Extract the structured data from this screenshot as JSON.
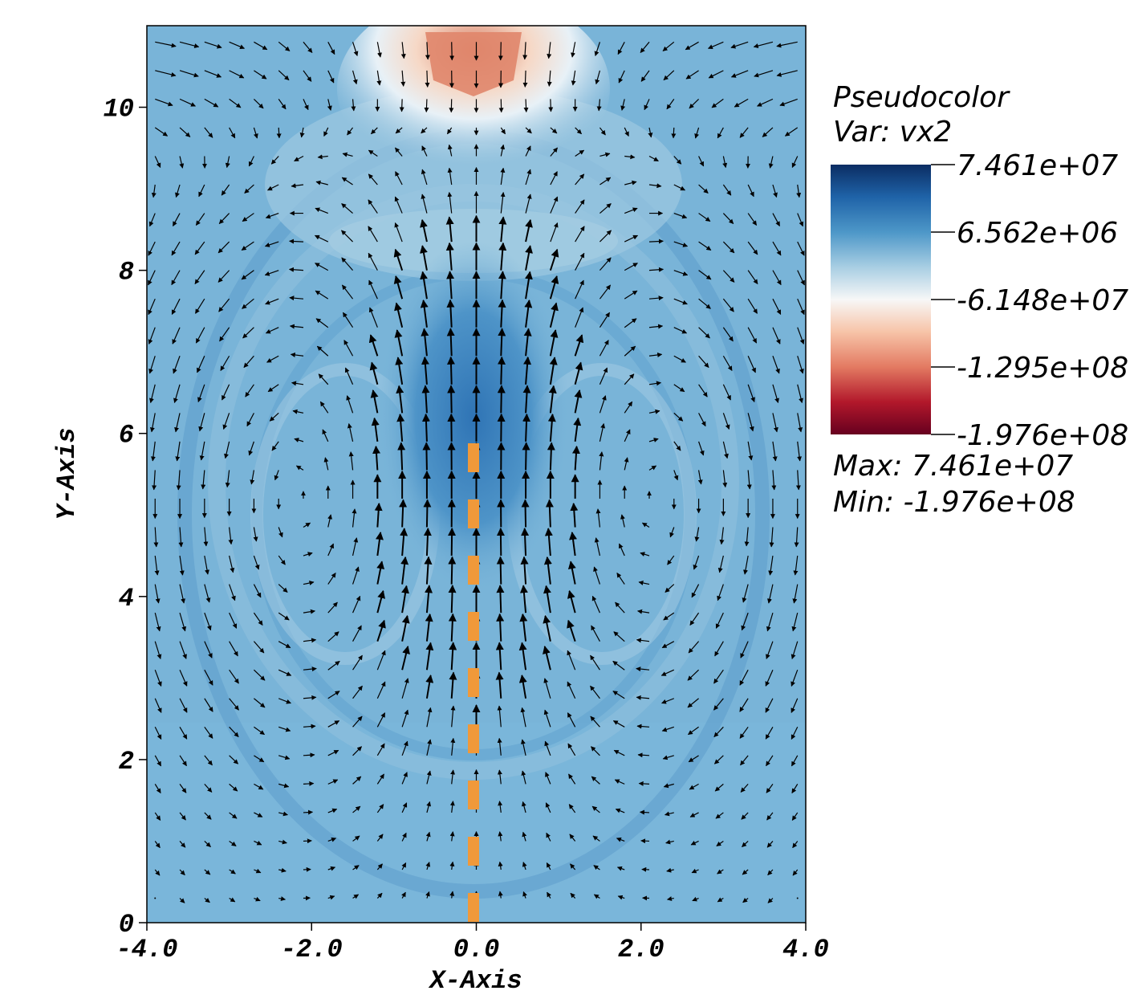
{
  "chart_data": {
    "type": "heatmap",
    "plot_kind": "pseudocolor field with velocity vector overlay",
    "xlabel": "X-Axis",
    "ylabel": "Y-Axis",
    "xlim": [
      -4.0,
      4.0
    ],
    "ylim": [
      0,
      11
    ],
    "x_ticks": [
      "-4.0",
      "-2.0",
      "0.0",
      "2.0",
      "4.0"
    ],
    "x_tick_values": [
      -4,
      -2,
      0,
      2,
      4
    ],
    "y_ticks": [
      "0",
      "2",
      "4",
      "6",
      "8",
      "10"
    ],
    "y_tick_values": [
      0,
      2,
      4,
      6,
      8,
      10
    ],
    "legend": {
      "title": "Pseudocolor",
      "var_label": "Var: vx2",
      "tick_labels": [
        "7.461e+07",
        "6.562e+06",
        "-6.148e+07",
        "-1.295e+08",
        "-1.976e+08"
      ],
      "max_label": "Max:  7.461e+07",
      "min_label": "Min: -1.976e+08",
      "placement": "right",
      "colormap": [
        "#0b2d63",
        "#1f63a8",
        "#4d97c8",
        "#a8cee3",
        "#f7f7f7",
        "#f7c4a8",
        "#e37a62",
        "#b2182b",
        "#67001f"
      ]
    },
    "background_color": "#79b4d8",
    "vector_color": "#000000",
    "centerline": {
      "x": 0.0,
      "y_range": [
        0,
        6.0
      ],
      "color": "#f0993a",
      "style": "dashed"
    }
  }
}
